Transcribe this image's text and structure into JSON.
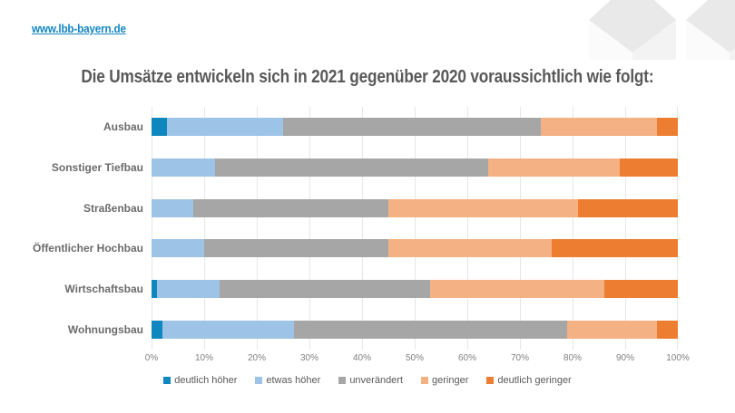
{
  "page": {
    "link_label": "www.lbb-bayern.de",
    "link_color": "#1486c2"
  },
  "title": "Die Umsätze entwickeln sich in 2021 gegenüber 2020 voraussichtlich wie folgt:",
  "chart_data": {
    "type": "bar",
    "orientation": "horizontal",
    "stacked": true,
    "title": "Die Umsätze entwickeln sich in 2021 gegenüber 2020 voraussichtlich wie folgt:",
    "categories": [
      "Ausbau",
      "Sonstiger Tiefbau",
      "Straßenbau",
      "Öffentlicher Hochbau",
      "Wirtschaftsbau",
      "Wohnungsbau"
    ],
    "series": [
      {
        "name": "deutlich höher",
        "color": "#0e86be",
        "values": [
          3,
          0,
          0,
          0,
          1,
          2
        ]
      },
      {
        "name": "etwas höher",
        "color": "#9dc3e6",
        "values": [
          22,
          12,
          8,
          10,
          12,
          25
        ]
      },
      {
        "name": "unverändert",
        "color": "#a6a6a6",
        "values": [
          49,
          52,
          37,
          35,
          40,
          52
        ]
      },
      {
        "name": "geringer",
        "color": "#f4b183",
        "values": [
          22,
          25,
          36,
          31,
          33,
          17
        ]
      },
      {
        "name": "deutlich geringer",
        "color": "#ed7d31",
        "values": [
          4,
          11,
          19,
          24,
          14,
          4
        ]
      }
    ],
    "x_ticks": [
      "0%",
      "10%",
      "20%",
      "30%",
      "40%",
      "50%",
      "60%",
      "70%",
      "80%",
      "90%",
      "100%"
    ],
    "xlim": [
      0,
      100
    ],
    "grid": "vertical",
    "legend_position": "bottom"
  }
}
